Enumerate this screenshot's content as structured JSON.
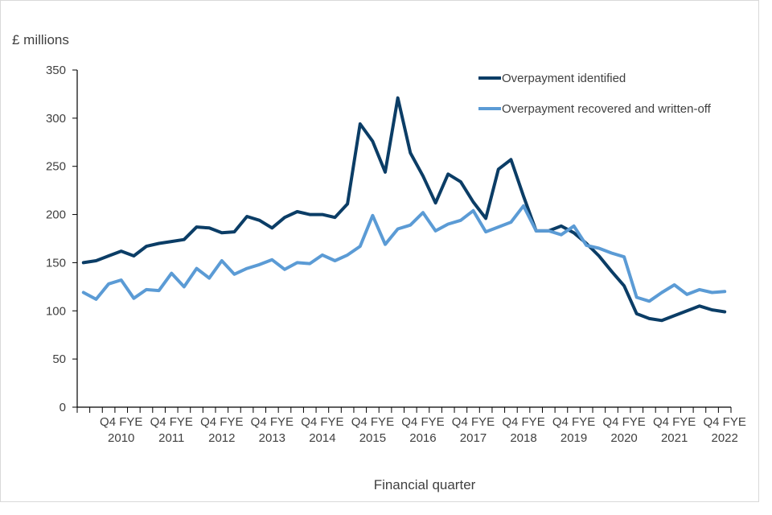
{
  "chart_data": {
    "type": "line",
    "ylabel": "£ millions",
    "xlabel": "Financial quarter",
    "ylim": [
      0,
      350
    ],
    "yticks": [
      0,
      50,
      100,
      150,
      200,
      250,
      300,
      350
    ],
    "grid": false,
    "legend_position": "top-right",
    "x_tick_labels": [
      {
        "line1": "Q4 FYE",
        "line2": "2010",
        "quarter_index": 3
      },
      {
        "line1": "Q4 FYE",
        "line2": "2011",
        "quarter_index": 7
      },
      {
        "line1": "Q4 FYE",
        "line2": "2012",
        "quarter_index": 11
      },
      {
        "line1": "Q4 FYE",
        "line2": "2013",
        "quarter_index": 15
      },
      {
        "line1": "Q4 FYE",
        "line2": "2014",
        "quarter_index": 19
      },
      {
        "line1": "Q4 FYE",
        "line2": "2015",
        "quarter_index": 23
      },
      {
        "line1": "Q4 FYE",
        "line2": "2016",
        "quarter_index": 27
      },
      {
        "line1": "Q4 FYE",
        "line2": "2017",
        "quarter_index": 31
      },
      {
        "line1": "Q4 FYE",
        "line2": "2018",
        "quarter_index": 35
      },
      {
        "line1": "Q4 FYE",
        "line2": "2019",
        "quarter_index": 39
      },
      {
        "line1": "Q4 FYE",
        "line2": "2020",
        "quarter_index": 43
      },
      {
        "line1": "Q4 FYE",
        "line2": "2021",
        "quarter_index": 47
      },
      {
        "line1": "Q4 FYE",
        "line2": "2022",
        "quarter_index": 51
      }
    ],
    "series": [
      {
        "name": "Overpayment identified",
        "color": "#0b3d66",
        "values": [
          150,
          152,
          157,
          162,
          157,
          167,
          170,
          172,
          174,
          187,
          186,
          181,
          182,
          198,
          194,
          186,
          197,
          203,
          200,
          200,
          197,
          211,
          294,
          276,
          244,
          321,
          264,
          240,
          212,
          242,
          234,
          213,
          196,
          247,
          257,
          219,
          183,
          183,
          188,
          181,
          170,
          157,
          141,
          126,
          97,
          92,
          90,
          95,
          100,
          105,
          101,
          99
        ]
      },
      {
        "name": "Overpayment recovered and written-off",
        "color": "#5b9bd5",
        "values": [
          119,
          112,
          128,
          132,
          113,
          122,
          121,
          139,
          125,
          144,
          134,
          152,
          138,
          144,
          148,
          153,
          143,
          150,
          149,
          158,
          152,
          158,
          167,
          199,
          169,
          185,
          189,
          202,
          183,
          190,
          194,
          204,
          182,
          187,
          192,
          209,
          183,
          183,
          179,
          188,
          168,
          165,
          160,
          156,
          114,
          110,
          119,
          127,
          117,
          122,
          119,
          120
        ]
      }
    ]
  }
}
